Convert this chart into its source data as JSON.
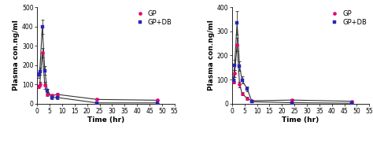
{
  "panel_A": {
    "gp_x": [
      0.5,
      1,
      2,
      3,
      4,
      6,
      8,
      24,
      48
    ],
    "gp_y": [
      88,
      100,
      265,
      95,
      48,
      42,
      48,
      22,
      18
    ],
    "gp_err": [
      8,
      12,
      25,
      18,
      7,
      7,
      7,
      4,
      3
    ],
    "gpdb_x": [
      0.5,
      1,
      2,
      3,
      4,
      6,
      8,
      24,
      48
    ],
    "gpdb_y": [
      148,
      168,
      398,
      172,
      68,
      32,
      32,
      4,
      4
    ],
    "gpdb_err": [
      14,
      18,
      38,
      22,
      9,
      7,
      7,
      2,
      1
    ],
    "ylabel": "Plasma con.ng/ml",
    "xlabel": "Time (hr)",
    "ylim": [
      0,
      500
    ],
    "xlim": [
      0,
      55
    ],
    "yticks": [
      0,
      100,
      200,
      300,
      400,
      500
    ],
    "xticks": [
      0,
      5,
      10,
      15,
      20,
      25,
      30,
      35,
      40,
      45,
      50,
      55
    ]
  },
  "panel_B": {
    "gp_x": [
      0.5,
      1,
      2,
      3,
      4,
      6,
      8,
      24,
      48
    ],
    "gp_y": [
      92,
      125,
      245,
      80,
      42,
      22,
      12,
      15,
      10
    ],
    "gp_err": [
      9,
      16,
      28,
      12,
      7,
      5,
      3,
      3,
      2
    ],
    "gpdb_x": [
      0.5,
      1,
      2,
      3,
      4,
      6,
      8,
      24,
      48
    ],
    "gpdb_y": [
      98,
      160,
      335,
      155,
      98,
      62,
      8,
      4,
      2
    ],
    "gpdb_err": [
      11,
      22,
      48,
      20,
      14,
      10,
      3,
      1,
      1
    ],
    "ylabel": "Plasma con.ng/ml",
    "xlabel": "Time (hr)",
    "ylim": [
      0,
      400
    ],
    "xlim": [
      0,
      55
    ],
    "yticks": [
      0,
      100,
      200,
      300,
      400
    ],
    "xticks": [
      0,
      5,
      10,
      15,
      20,
      25,
      30,
      35,
      40,
      45,
      50,
      55
    ]
  },
  "gp_color": "#e8006e",
  "gpdb_color": "#2525bb",
  "line_color": "#333333",
  "background": "#ffffff",
  "legend_labels": [
    "GP",
    "GP+DB"
  ],
  "font_size": 6,
  "tick_font_size": 5.5,
  "label_font_size": 6.5,
  "title_font_size": 9,
  "line_width": 0.8,
  "marker_size": 3.0,
  "capsize": 1.5
}
